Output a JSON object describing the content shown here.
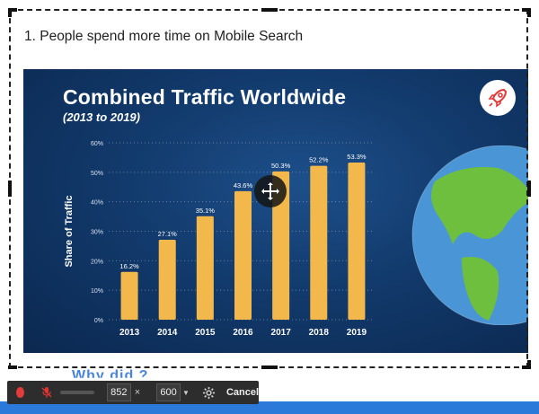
{
  "document": {
    "heading": "1. People spend more time on Mobile Search",
    "next_heading_partial": "Why did                           ?"
  },
  "slide": {
    "title": "Combined Traffic Worldwide",
    "subtitle": "(2013 to 2019)",
    "rocket_icon": "rocket-icon",
    "globe_icon": "globe-icon"
  },
  "chart_data": {
    "type": "bar",
    "title": "Combined Traffic Worldwide",
    "subtitle": "(2013 to 2019)",
    "xlabel": "",
    "ylabel": "Share of Traffic",
    "categories": [
      "2013",
      "2014",
      "2015",
      "2016",
      "2017",
      "2018",
      "2019"
    ],
    "values": [
      16.2,
      27.1,
      35.1,
      43.6,
      50.3,
      52.2,
      53.3
    ],
    "value_labels": [
      "16.2%",
      "27.1%",
      "35.1%",
      "43.6%",
      "50.3%",
      "52.2%",
      "53.3%"
    ],
    "yticks": [
      "0%",
      "10%",
      "20%",
      "30%",
      "40%",
      "50%",
      "60%"
    ],
    "ylim": [
      0,
      60
    ],
    "grid": true,
    "bar_color": "#f2b84b"
  },
  "toolbar": {
    "record_icon": "record-icon",
    "mute_icon": "mic-muted-icon",
    "width": "852",
    "times": "×",
    "height": "600",
    "settings_icon": "gear-icon",
    "cancel_label": "Cancel"
  },
  "colors": {
    "slide_bg": "#123a6c",
    "bar": "#f2b84b",
    "accent_blue": "#2b79d9",
    "record_red": "#e23b3b"
  }
}
